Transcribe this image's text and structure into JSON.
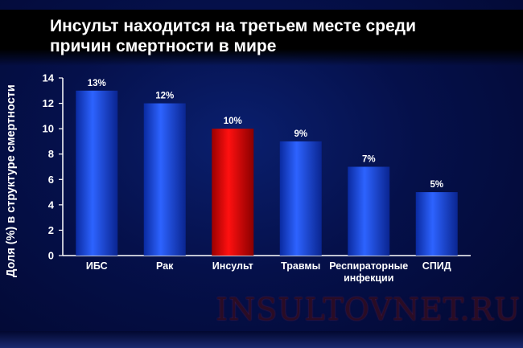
{
  "title_line1": "Инсульт находится на третьем месте среди",
  "title_line2": "причин смертности в мире",
  "watermark": "INSULTOVNET.RU",
  "chart_data": {
    "type": "bar",
    "title": "Инсульт находится на третьем месте среди причин смертности в мире",
    "ylabel": "Доля (%) в структуре смертности",
    "xlabel": "",
    "ylim": [
      0,
      14
    ],
    "yticks": [
      0,
      2,
      4,
      6,
      8,
      10,
      12,
      14
    ],
    "grid": false,
    "categories": [
      [
        "ИБС"
      ],
      [
        "Рак"
      ],
      [
        "Инсульт"
      ],
      [
        "Травмы"
      ],
      [
        "Респираторные",
        "инфекции"
      ],
      [
        "СПИД"
      ]
    ],
    "values": [
      13,
      12,
      10,
      9,
      7,
      5
    ],
    "labels": [
      "13%",
      "12%",
      "10%",
      "9%",
      "7%",
      "5%"
    ],
    "colors": [
      "#1f4fe0",
      "#1f4fe0",
      "#e00000",
      "#1f4fe0",
      "#1f4fe0",
      "#1f4fe0"
    ]
  }
}
